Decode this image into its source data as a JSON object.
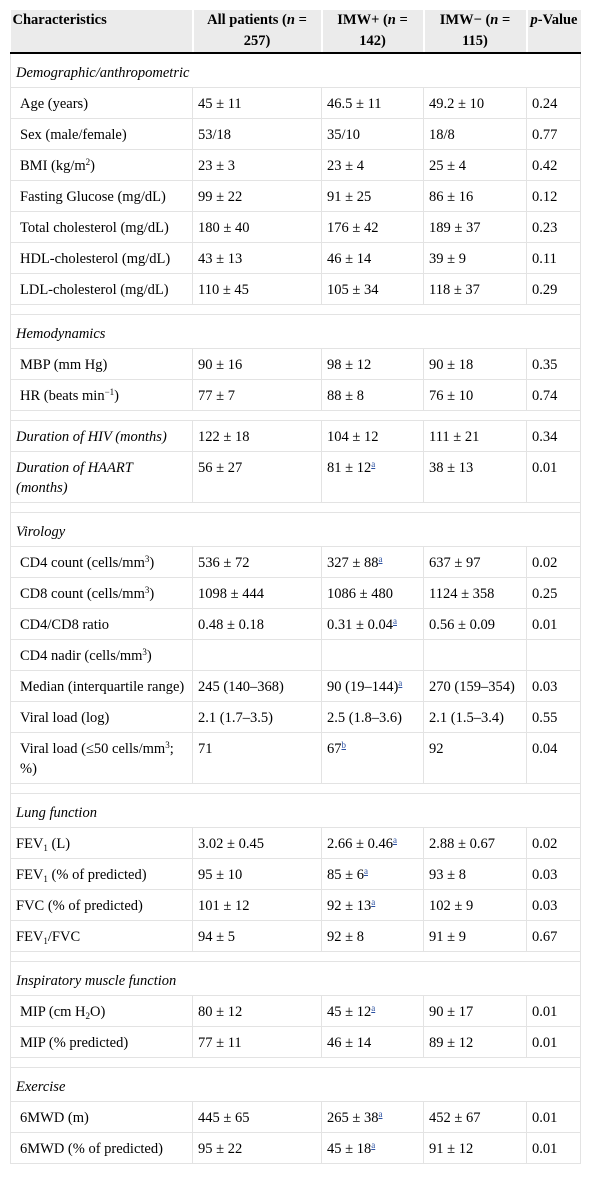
{
  "header": {
    "col1": "Characteristics",
    "col2_a": "All patients (",
    "col2_n": "n",
    "col2_b": " = 257)",
    "col3_a": "IMW+ (",
    "col3_n": "n",
    "col3_b": " = 142)",
    "col4_a": "IMW− (",
    "col4_n": "n",
    "col4_b": " = 115)",
    "col5_p": "p",
    "col5_b": "-Value"
  },
  "sections": {
    "demographic": "Demographic/anthropometric",
    "hemodynamics": "Hemodynamics",
    "virology": "Virology",
    "lung": "Lung function",
    "inspiratory": "Inspiratory muscle function",
    "exercise": "Exercise"
  },
  "rows": {
    "age": {
      "label": "Age (years)",
      "all": "45 ± 11",
      "imwp": "46.5 ± 11",
      "imwm": "49.2 ± 10",
      "p": "0.24"
    },
    "sex": {
      "label": "Sex (male/female)",
      "all": "53/18",
      "imwp": "35/10",
      "imwm": "18/8",
      "p": "0.77"
    },
    "bmi": {
      "label_a": "BMI (kg/m",
      "label_sup": "2",
      "label_b": ")",
      "all": "23 ± 3",
      "imwp": "23 ± 4",
      "imwm": "25 ± 4",
      "p": "0.42"
    },
    "glucose": {
      "label": "Fasting Glucose (mg/dL)",
      "all": "99 ± 22",
      "imwp": "91 ± 25",
      "imwm": "86 ± 16",
      "p": "0.12"
    },
    "totchol": {
      "label": "Total cholesterol (mg/dL)",
      "all": "180 ± 40",
      "imwp": "176 ± 42",
      "imwm": "189 ± 37",
      "p": "0.23"
    },
    "hdl": {
      "label": "HDL-cholesterol (mg/dL)",
      "all": "43 ± 13",
      "imwp": "46 ± 14",
      "imwm": "39 ± 9",
      "p": "0.11"
    },
    "ldl": {
      "label": "LDL-cholesterol (mg/dL)",
      "all": "110 ± 45",
      "imwp": "105 ± 34",
      "imwm": "118 ± 37",
      "p": "0.29"
    },
    "mbp": {
      "label": "MBP (mm Hg)",
      "all": "90 ± 16",
      "imwp": "98 ± 12",
      "imwm": "90 ± 18",
      "p": "0.35"
    },
    "hr": {
      "label_a": "HR (beats min",
      "label_sup": "−1",
      "label_b": ")",
      "all": "77 ± 7",
      "imwp": "88 ± 8",
      "imwm": "76 ± 10",
      "p": "0.74"
    },
    "hiv": {
      "label": "Duration of HIV (months)",
      "all": "122 ± 18",
      "imwp": "104 ± 12",
      "imwm": "111 ± 21",
      "p": "0.34"
    },
    "haart": {
      "label": "Duration of HAART (months)",
      "all": "56 ± 27",
      "imwp": "81 ± 12",
      "imwp_fn": "a",
      "imwm": "38 ± 13",
      "p": "0.01"
    },
    "cd4": {
      "label_a": "CD4 count (cells/mm",
      "label_sup": "3",
      "label_b": ")",
      "all": "536 ± 72",
      "imwp": "327 ± 88",
      "imwp_fn": "a",
      "imwm": "637 ± 97",
      "p": "0.02"
    },
    "cd8": {
      "label_a": "CD8 count (cells/mm",
      "label_sup": "3",
      "label_b": ")",
      "all": "1098 ± 444",
      "imwp": "1086 ± 480",
      "imwm": "1124 ± 358",
      "p": "0.25"
    },
    "ratio": {
      "label": "CD4/CD8 ratio",
      "all": "0.48 ± 0.18",
      "imwp": "0.31 ± 0.04",
      "imwp_fn": "a",
      "imwm": "0.56 ± 0.09",
      "p": "0.01"
    },
    "nadir": {
      "label_a": "CD4 nadir (cells/mm",
      "label_sup": "3",
      "label_b": ")"
    },
    "median": {
      "label": "Median (interquartile range)",
      "all": "245 (140–368)",
      "imwp": "90 (19–144)",
      "imwp_fn": "a",
      "imwm": "270 (159–354)",
      "p": "0.03"
    },
    "vlog": {
      "label": "Viral load (log)",
      "all": "2.1 (1.7–3.5)",
      "imwp": "2.5 (1.8–3.6)",
      "imwm": "2.1 (1.5–3.4)",
      "p": "0.55"
    },
    "vload": {
      "label_a": "Viral load (≤50 cells/mm",
      "label_sup": "3",
      "label_b": "; %)",
      "all": "71",
      "imwp": "67",
      "imwp_fn": "b",
      "imwm": "92",
      "p": "0.04"
    },
    "fev1l": {
      "label_a": "FEV",
      "label_sub": "1",
      "label_b": " (L)",
      "all": "3.02 ± 0.45",
      "imwp": "2.66 ± 0.46",
      "imwp_fn": "a",
      "imwm": "2.88 ± 0.67",
      "p": "0.02"
    },
    "fev1p": {
      "label_a": "FEV",
      "label_sub": "1",
      "label_b": " (% of predicted)",
      "all": "95 ± 10",
      "imwp": "85 ± 6",
      "imwp_fn": "a",
      "imwm": "93 ± 8",
      "p": "0.03"
    },
    "fvc": {
      "label": "FVC (% of predicted)",
      "all": "101 ± 12",
      "imwp": "92 ± 13",
      "imwp_fn": "a",
      "imwm": "102 ± 9",
      "p": "0.03"
    },
    "fevfvc": {
      "label_a": "FEV",
      "label_sub": "1",
      "label_b": "/FVC",
      "all": "94 ± 5",
      "imwp": "92 ± 8",
      "imwm": "91 ± 9",
      "p": "0.67"
    },
    "mip": {
      "label_a": "MIP (cm H",
      "label_sub": "2",
      "label_b": "O)",
      "all": "80 ± 12",
      "imwp": "45 ± 12",
      "imwp_fn": "a",
      "imwm": "90 ± 17",
      "p": "0.01"
    },
    "mipp": {
      "label": "MIP (% predicted)",
      "all": "77 ± 11",
      "imwp": "46 ± 14",
      "imwm": "89 ± 12",
      "p": "0.01"
    },
    "smwd": {
      "label": "6MWD (m)",
      "all": "445 ± 65",
      "imwp": "265 ± 38",
      "imwp_fn": "a",
      "imwm": "452 ± 67",
      "p": "0.01"
    },
    "smwdp": {
      "label": "6MWD (% of predicted)",
      "all": "95 ± 22",
      "imwp": "45 ± 18",
      "imwp_fn": "a",
      "imwm": "91 ± 12",
      "p": "0.01"
    }
  }
}
